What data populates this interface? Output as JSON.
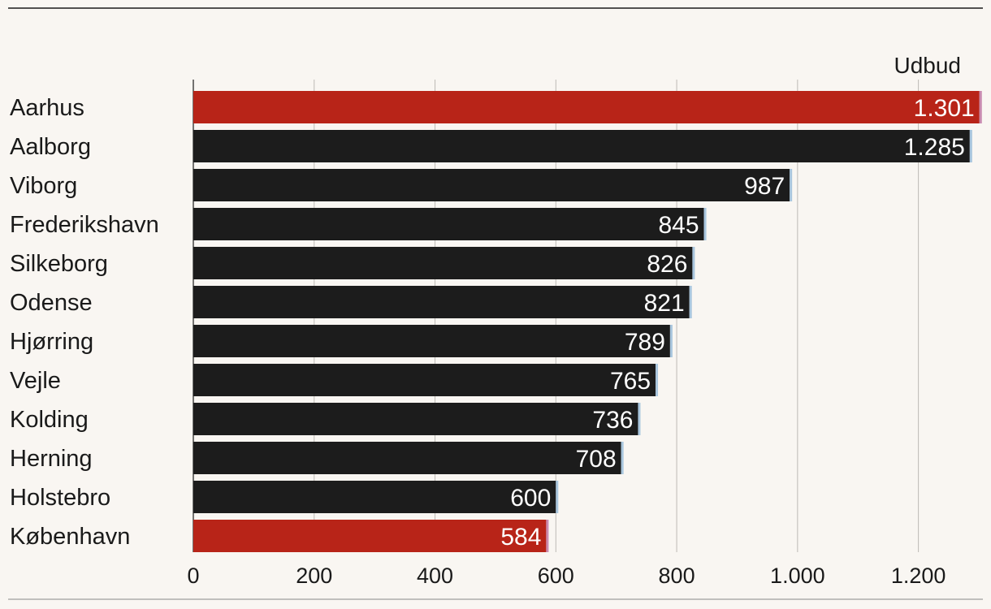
{
  "chart_data": {
    "type": "bar",
    "orientation": "horizontal",
    "legend": "Udbud",
    "categories": [
      "Aarhus",
      "Aalborg",
      "Viborg",
      "Frederikshavn",
      "Silkeborg",
      "Odense",
      "Hjørring",
      "Vejle",
      "Kolding",
      "Herning",
      "Holstebro",
      "København"
    ],
    "values": [
      1301,
      1285,
      987,
      845,
      826,
      821,
      789,
      765,
      736,
      708,
      600,
      584
    ],
    "value_labels": [
      "1.301",
      "1.285",
      "987",
      "845",
      "826",
      "821",
      "789",
      "765",
      "736",
      "708",
      "600",
      "584"
    ],
    "highlight": [
      true,
      false,
      false,
      false,
      false,
      false,
      false,
      false,
      false,
      false,
      false,
      true
    ],
    "xlim": [
      0,
      1300
    ],
    "xticks": [
      0,
      200,
      400,
      600,
      800,
      1000,
      1200
    ],
    "xtick_labels": [
      "0",
      "200",
      "400",
      "600",
      "800",
      "1.000",
      "1.200"
    ],
    "grid": true,
    "colors": {
      "highlight": "#b82418",
      "default": "#1c1c1c",
      "background": "#f9f6f2"
    }
  }
}
